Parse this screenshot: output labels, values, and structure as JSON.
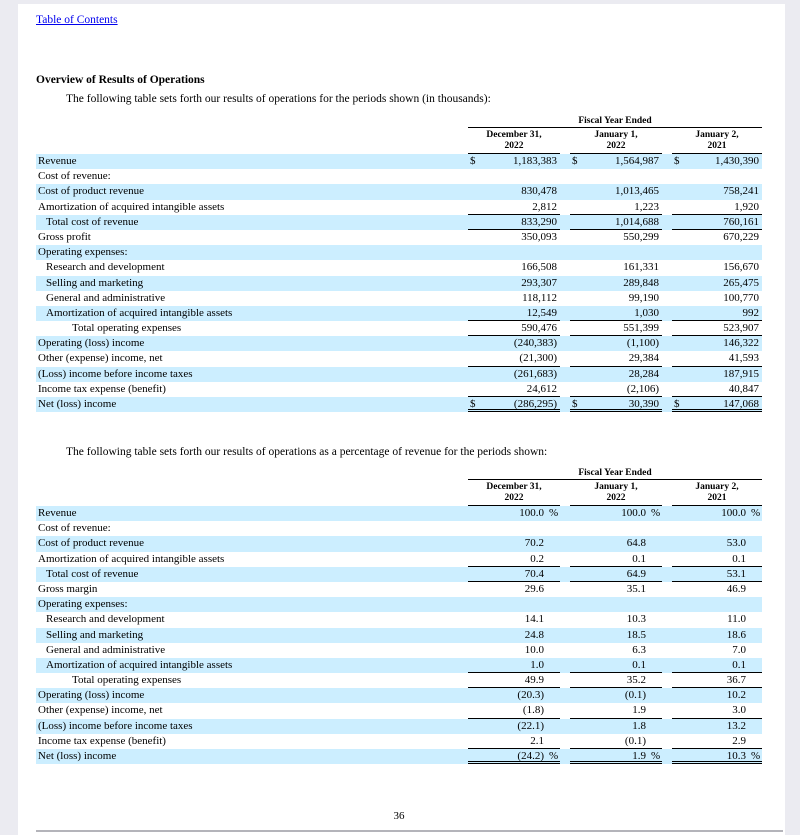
{
  "page": {
    "toc_link": "Table of Contents",
    "heading": "Overview of Results of Operations",
    "intro1": "The following table sets forth our results of operations for the periods shown (in thousands):",
    "intro2": "The following table sets forth our results of operations as a percentage of revenue for the periods shown:",
    "page_number": "36"
  },
  "colors": {
    "row_highlight": "#CCEEFF",
    "link": "#0000EE",
    "page_background": "#FFFFFF",
    "canvas_background": "#EBEBF1"
  },
  "tables": [
    {
      "span_header": "Fiscal Year Ended",
      "columns": [
        "December 31,\n2022",
        "January 1,\n2022",
        "January 2,\n2021"
      ],
      "rows": [
        {
          "label": "Revenue",
          "indent": 0,
          "shaded": true,
          "prefix": "$",
          "values": [
            "1,183,383",
            "1,564,987",
            "1,430,390"
          ],
          "rule": "none"
        },
        {
          "label": "Cost of revenue:",
          "indent": 0,
          "shaded": false,
          "rule": "none"
        },
        {
          "label": "Cost of product revenue",
          "indent": 0,
          "shaded": true,
          "values": [
            "830,478",
            "1,013,465",
            "758,241"
          ],
          "rule": "none"
        },
        {
          "label": "Amortization of acquired intangible assets",
          "indent": 0,
          "shaded": false,
          "values": [
            "2,812",
            "1,223",
            "1,920"
          ],
          "rule": "under"
        },
        {
          "label": "Total cost of revenue",
          "indent": 1,
          "shaded": true,
          "values": [
            "833,290",
            "1,014,688",
            "760,161"
          ],
          "rule": "under"
        },
        {
          "label": "Gross profit",
          "indent": 0,
          "shaded": false,
          "values": [
            "350,093",
            "550,299",
            "670,229"
          ],
          "rule": "none"
        },
        {
          "label": "Operating expenses:",
          "indent": 0,
          "shaded": true,
          "rule": "none"
        },
        {
          "label": "Research and development",
          "indent": 1,
          "shaded": false,
          "values": [
            "166,508",
            "161,331",
            "156,670"
          ],
          "rule": "none"
        },
        {
          "label": "Selling and marketing",
          "indent": 1,
          "shaded": true,
          "values": [
            "293,307",
            "289,848",
            "265,475"
          ],
          "rule": "none"
        },
        {
          "label": "General and administrative",
          "indent": 1,
          "shaded": false,
          "values": [
            "118,112",
            "99,190",
            "100,770"
          ],
          "rule": "none"
        },
        {
          "label": "Amortization of acquired intangible assets",
          "indent": 1,
          "shaded": true,
          "values": [
            "12,549",
            "1,030",
            "992"
          ],
          "rule": "under"
        },
        {
          "label": "Total operating expenses",
          "indent": 3,
          "shaded": false,
          "values": [
            "590,476",
            "551,399",
            "523,907"
          ],
          "rule": "under"
        },
        {
          "label": "Operating (loss) income",
          "indent": 0,
          "shaded": true,
          "values": [
            "(240,383)",
            "(1,100)",
            "146,322"
          ],
          "rule": "none"
        },
        {
          "label": "Other (expense) income, net",
          "indent": 0,
          "shaded": false,
          "values": [
            "(21,300)",
            "29,384",
            "41,593"
          ],
          "rule": "under"
        },
        {
          "label": "(Loss) income before income taxes",
          "indent": 0,
          "shaded": true,
          "values": [
            "(261,683)",
            "28,284",
            "187,915"
          ],
          "rule": "none"
        },
        {
          "label": "Income tax expense (benefit)",
          "indent": 0,
          "shaded": false,
          "values": [
            "24,612",
            "(2,106)",
            "40,847"
          ],
          "rule": "under"
        },
        {
          "label": "Net (loss) income",
          "indent": 0,
          "shaded": true,
          "prefix": "$",
          "values": [
            "(286,295)",
            "30,390",
            "147,068"
          ],
          "rule": "double"
        }
      ]
    },
    {
      "span_header": "Fiscal Year Ended",
      "columns": [
        "December 31,\n2022",
        "January 1,\n2022",
        "January 2,\n2021"
      ],
      "rows": [
        {
          "label": "Revenue",
          "indent": 0,
          "shaded": true,
          "values": [
            "100.0",
            "100.0",
            "100.0"
          ],
          "suffix": "%",
          "rule": "none"
        },
        {
          "label": "Cost of revenue:",
          "indent": 0,
          "shaded": false,
          "rule": "none"
        },
        {
          "label": "Cost of product revenue",
          "indent": 0,
          "shaded": true,
          "values": [
            "70.2",
            "64.8",
            "53.0"
          ],
          "rule": "none"
        },
        {
          "label": "Amortization of acquired intangible assets",
          "indent": 0,
          "shaded": false,
          "values": [
            "0.2",
            "0.1",
            "0.1"
          ],
          "rule": "under"
        },
        {
          "label": "Total cost of revenue",
          "indent": 1,
          "shaded": true,
          "values": [
            "70.4",
            "64.9",
            "53.1"
          ],
          "rule": "under"
        },
        {
          "label": "Gross margin",
          "indent": 0,
          "shaded": false,
          "values": [
            "29.6",
            "35.1",
            "46.9"
          ],
          "rule": "none"
        },
        {
          "label": "Operating expenses:",
          "indent": 0,
          "shaded": true,
          "rule": "none"
        },
        {
          "label": "Research and development",
          "indent": 1,
          "shaded": false,
          "values": [
            "14.1",
            "10.3",
            "11.0"
          ],
          "rule": "none"
        },
        {
          "label": "Selling and marketing",
          "indent": 1,
          "shaded": true,
          "values": [
            "24.8",
            "18.5",
            "18.6"
          ],
          "rule": "none"
        },
        {
          "label": "General and administrative",
          "indent": 1,
          "shaded": false,
          "values": [
            "10.0",
            "6.3",
            "7.0"
          ],
          "rule": "none"
        },
        {
          "label": "Amortization of acquired intangible assets",
          "indent": 1,
          "shaded": true,
          "values": [
            "1.0",
            "0.1",
            "0.1"
          ],
          "rule": "under"
        },
        {
          "label": "Total operating expenses",
          "indent": 3,
          "shaded": false,
          "values": [
            "49.9",
            "35.2",
            "36.7"
          ],
          "rule": "under"
        },
        {
          "label": "Operating (loss) income",
          "indent": 0,
          "shaded": true,
          "values": [
            "(20.3)",
            "(0.1)",
            "10.2"
          ],
          "rule": "none"
        },
        {
          "label": "Other (expense) income, net",
          "indent": 0,
          "shaded": false,
          "values": [
            "(1.8)",
            "1.9",
            "3.0"
          ],
          "rule": "under"
        },
        {
          "label": "(Loss) income before income taxes",
          "indent": 0,
          "shaded": true,
          "values": [
            "(22.1)",
            "1.8",
            "13.2"
          ],
          "rule": "none"
        },
        {
          "label": "Income tax expense (benefit)",
          "indent": 0,
          "shaded": false,
          "values": [
            "2.1",
            "(0.1)",
            "2.9"
          ],
          "rule": "under"
        },
        {
          "label": "Net (loss) income",
          "indent": 0,
          "shaded": true,
          "values": [
            "(24.2)",
            "1.9",
            "10.3"
          ],
          "suffix": "%",
          "rule": "double"
        }
      ]
    }
  ]
}
